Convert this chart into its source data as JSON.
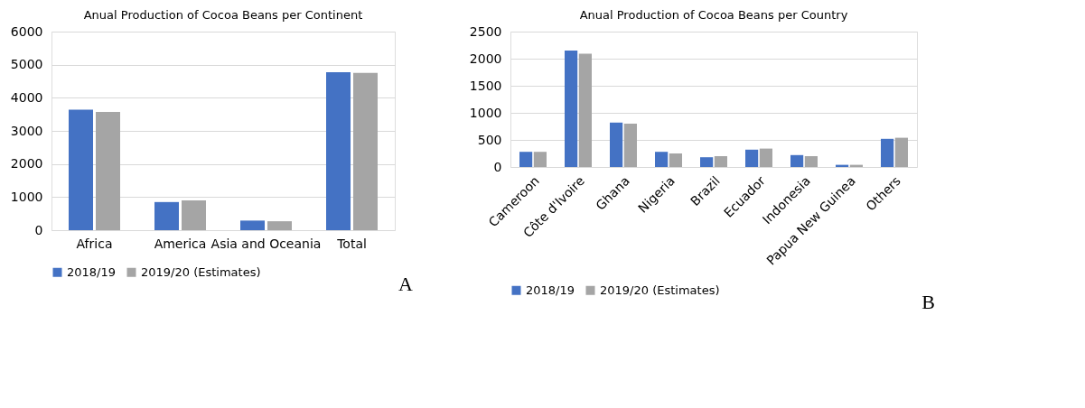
{
  "chart_data": [
    {
      "type": "bar",
      "title": "Anual Production of Cocoa Beans per Continent",
      "categories": [
        "Africa",
        "America",
        "Asia and Oceania",
        "Total"
      ],
      "series": [
        {
          "name": "2018/19",
          "color": "#4472c4",
          "values": [
            3640,
            850,
            290,
            4770
          ]
        },
        {
          "name": "2019/20 (Estimates)",
          "color": "#a5a5a5",
          "values": [
            3570,
            900,
            270,
            4750
          ]
        }
      ],
      "ylim": [
        0,
        6000
      ],
      "yticks": [
        0,
        1000,
        2000,
        3000,
        4000,
        5000,
        6000
      ],
      "grid": "y",
      "legend": "bottom",
      "annotations": [
        "A"
      ]
    },
    {
      "type": "bar",
      "title": "Anual Production of Cocoa Beans per Country",
      "categories": [
        "Cameroon",
        "Côte d'Ivoire",
        "Ghana",
        "Nigeria",
        "Brazil",
        "Ecuador",
        "Indonesia",
        "Papua New Guinea",
        "Others"
      ],
      "series": [
        {
          "name": "2018/19",
          "color": "#4472c4",
          "values": [
            280,
            2150,
            820,
            280,
            180,
            320,
            220,
            40,
            520
          ]
        },
        {
          "name": "2019/20 (Estimates)",
          "color": "#a5a5a5",
          "values": [
            280,
            2090,
            800,
            250,
            200,
            340,
            200,
            40,
            540
          ]
        }
      ],
      "ylim": [
        0,
        2500
      ],
      "yticks": [
        0,
        500,
        1000,
        1500,
        2000,
        2500
      ],
      "grid": "y",
      "legend": "bottom",
      "annotations": [
        "B"
      ]
    }
  ]
}
